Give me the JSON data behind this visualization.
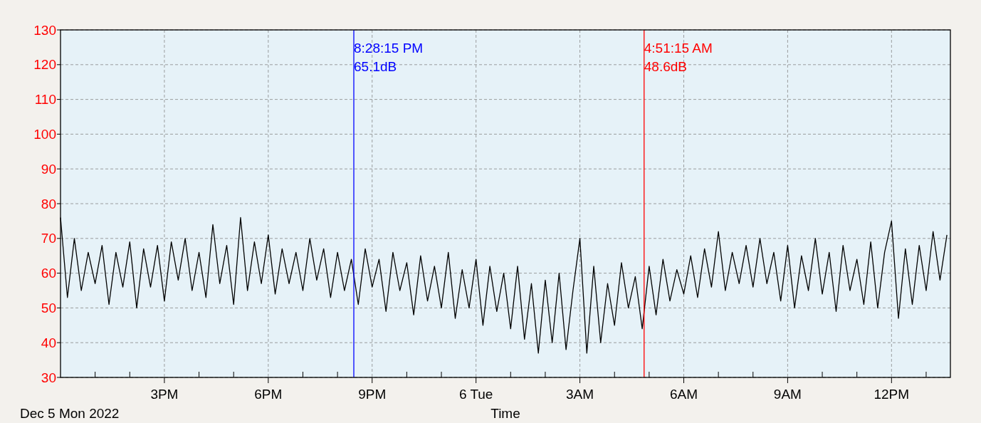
{
  "chart_data": {
    "type": "line",
    "xlabel": "Time",
    "annotations": [
      "Dec 5 Mon 2022"
    ],
    "xlim": [
      "2022-12-05T12:00",
      "2022-12-06T13:42"
    ],
    "xticks": [
      {
        "value": "2022-12-05T13:00",
        "label": null
      },
      {
        "value": "2022-12-05T14:00",
        "label": null
      },
      {
        "value": "2022-12-05T15:00",
        "label": "3PM"
      },
      {
        "value": "2022-12-05T16:00",
        "label": null
      },
      {
        "value": "2022-12-05T17:00",
        "label": null
      },
      {
        "value": "2022-12-05T18:00",
        "label": "6PM"
      },
      {
        "value": "2022-12-05T19:00",
        "label": null
      },
      {
        "value": "2022-12-05T20:00",
        "label": null
      },
      {
        "value": "2022-12-05T21:00",
        "label": "9PM"
      },
      {
        "value": "2022-12-05T22:00",
        "label": null
      },
      {
        "value": "2022-12-05T23:00",
        "label": null
      },
      {
        "value": "2022-12-06T00:00",
        "label": "6 Tue"
      },
      {
        "value": "2022-12-06T01:00",
        "label": null
      },
      {
        "value": "2022-12-06T02:00",
        "label": null
      },
      {
        "value": "2022-12-06T03:00",
        "label": "3AM"
      },
      {
        "value": "2022-12-06T04:00",
        "label": null
      },
      {
        "value": "2022-12-06T05:00",
        "label": null
      },
      {
        "value": "2022-12-06T06:00",
        "label": "6AM"
      },
      {
        "value": "2022-12-06T07:00",
        "label": null
      },
      {
        "value": "2022-12-06T08:00",
        "label": null
      },
      {
        "value": "2022-12-06T09:00",
        "label": "9AM"
      },
      {
        "value": "2022-12-06T10:00",
        "label": null
      },
      {
        "value": "2022-12-06T11:00",
        "label": null
      },
      {
        "value": "2022-12-06T12:00",
        "label": "12PM"
      },
      {
        "value": "2022-12-06T13:00",
        "label": null
      }
    ],
    "ylim": [
      30,
      130
    ],
    "yticks": [
      30,
      40,
      50,
      60,
      70,
      80,
      90,
      100,
      110,
      120,
      130
    ],
    "grid": true,
    "ref_lines": [
      {
        "axis": "x",
        "value": "2022-12-05T20:28:15",
        "label": "8:28:15 PM\n65.1dB",
        "color": "#0000ff"
      },
      {
        "axis": "x",
        "value": "2022-12-06T04:51:15",
        "label": "4:51:15 AM\n48.6dB",
        "color": "#ff0000"
      }
    ],
    "x": [
      "2022-12-05T12:00",
      "2022-12-05T12:12",
      "2022-12-05T12:24",
      "2022-12-05T12:36",
      "2022-12-05T12:48",
      "2022-12-05T13:00",
      "2022-12-05T13:12",
      "2022-12-05T13:24",
      "2022-12-05T13:36",
      "2022-12-05T13:48",
      "2022-12-05T14:00",
      "2022-12-05T14:12",
      "2022-12-05T14:24",
      "2022-12-05T14:36",
      "2022-12-05T14:48",
      "2022-12-05T15:00",
      "2022-12-05T15:12",
      "2022-12-05T15:24",
      "2022-12-05T15:36",
      "2022-12-05T15:48",
      "2022-12-05T16:00",
      "2022-12-05T16:12",
      "2022-12-05T16:24",
      "2022-12-05T16:36",
      "2022-12-05T16:48",
      "2022-12-05T17:00",
      "2022-12-05T17:12",
      "2022-12-05T17:24",
      "2022-12-05T17:36",
      "2022-12-05T17:48",
      "2022-12-05T18:00",
      "2022-12-05T18:12",
      "2022-12-05T18:24",
      "2022-12-05T18:36",
      "2022-12-05T18:48",
      "2022-12-05T19:00",
      "2022-12-05T19:12",
      "2022-12-05T19:24",
      "2022-12-05T19:36",
      "2022-12-05T19:48",
      "2022-12-05T20:00",
      "2022-12-05T20:12",
      "2022-12-05T20:24",
      "2022-12-05T20:36",
      "2022-12-05T20:48",
      "2022-12-05T21:00",
      "2022-12-05T21:12",
      "2022-12-05T21:24",
      "2022-12-05T21:36",
      "2022-12-05T21:48",
      "2022-12-05T22:00",
      "2022-12-05T22:12",
      "2022-12-05T22:24",
      "2022-12-05T22:36",
      "2022-12-05T22:48",
      "2022-12-05T23:00",
      "2022-12-05T23:12",
      "2022-12-05T23:24",
      "2022-12-05T23:36",
      "2022-12-05T23:48",
      "2022-12-06T00:00",
      "2022-12-06T00:12",
      "2022-12-06T00:24",
      "2022-12-06T00:36",
      "2022-12-06T00:48",
      "2022-12-06T01:00",
      "2022-12-06T01:12",
      "2022-12-06T01:24",
      "2022-12-06T01:36",
      "2022-12-06T01:48",
      "2022-12-06T02:00",
      "2022-12-06T02:12",
      "2022-12-06T02:24",
      "2022-12-06T02:36",
      "2022-12-06T02:48",
      "2022-12-06T03:00",
      "2022-12-06T03:12",
      "2022-12-06T03:24",
      "2022-12-06T03:36",
      "2022-12-06T03:48",
      "2022-12-06T04:00",
      "2022-12-06T04:12",
      "2022-12-06T04:24",
      "2022-12-06T04:36",
      "2022-12-06T04:48",
      "2022-12-06T05:00",
      "2022-12-06T05:12",
      "2022-12-06T05:24",
      "2022-12-06T05:36",
      "2022-12-06T05:48",
      "2022-12-06T06:00",
      "2022-12-06T06:12",
      "2022-12-06T06:24",
      "2022-12-06T06:36",
      "2022-12-06T06:48",
      "2022-12-06T07:00",
      "2022-12-06T07:12",
      "2022-12-06T07:24",
      "2022-12-06T07:36",
      "2022-12-06T07:48",
      "2022-12-06T08:00",
      "2022-12-06T08:12",
      "2022-12-06T08:24",
      "2022-12-06T08:36",
      "2022-12-06T08:48",
      "2022-12-06T09:00",
      "2022-12-06T09:12",
      "2022-12-06T09:24",
      "2022-12-06T09:36",
      "2022-12-06T09:48",
      "2022-12-06T10:00",
      "2022-12-06T10:12",
      "2022-12-06T10:24",
      "2022-12-06T10:36",
      "2022-12-06T10:48",
      "2022-12-06T11:00",
      "2022-12-06T11:12",
      "2022-12-06T11:24",
      "2022-12-06T11:36",
      "2022-12-06T11:48",
      "2022-12-06T12:00",
      "2022-12-06T12:12",
      "2022-12-06T12:24",
      "2022-12-06T12:36",
      "2022-12-06T12:48",
      "2022-12-06T13:00",
      "2022-12-06T13:12",
      "2022-12-06T13:24",
      "2022-12-06T13:36"
    ],
    "series": [
      {
        "color": "#000000",
        "values": [
          76,
          53,
          70,
          55,
          66,
          57,
          68,
          51,
          66,
          56,
          69,
          50,
          67,
          56,
          68,
          52,
          69,
          58,
          70,
          55,
          66,
          53,
          74,
          57,
          68,
          51,
          76,
          55,
          69,
          57,
          71,
          54,
          67,
          57,
          66,
          55,
          70,
          58,
          67,
          53,
          66,
          55,
          64,
          51,
          67,
          56,
          64,
          49,
          66,
          55,
          63,
          48,
          65,
          52,
          62,
          50,
          66,
          47,
          61,
          50,
          64,
          45,
          62,
          49,
          60,
          44,
          62,
          41,
          57,
          37,
          58,
          40,
          60,
          38,
          55,
          70,
          37,
          62,
          40,
          57,
          45,
          63,
          50,
          59,
          44,
          62,
          48,
          64,
          52,
          61,
          54,
          65,
          53,
          67,
          56,
          72,
          55,
          66,
          57,
          68,
          56,
          70,
          57,
          66,
          52,
          68,
          50,
          65,
          55,
          70,
          54,
          66,
          49,
          68,
          55,
          64,
          51,
          69,
          50,
          66,
          75,
          47,
          67,
          51,
          68,
          55,
          72,
          58,
          71
        ]
      }
    ]
  }
}
